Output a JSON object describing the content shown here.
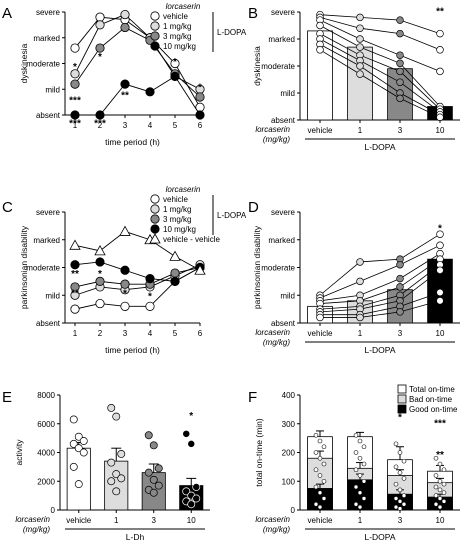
{
  "chart_data": [
    {
      "panel": "A",
      "type": "line",
      "ylabel": "dyskinesia",
      "xlabel": "time period (h)",
      "x": [
        1,
        2,
        3,
        4,
        5,
        6
      ],
      "ytick_labels": [
        "absent",
        "mild",
        "moderate",
        "marked",
        "severe"
      ],
      "ylim": [
        0,
        4
      ],
      "legend_title": "lorcaserin",
      "legend_bracket": "L-DOPA",
      "series": [
        {
          "name": "vehicle",
          "fill": "#ffffff",
          "values": [
            2.6,
            3.8,
            3.7,
            3.0,
            2.0,
            0.3
          ]
        },
        {
          "name": "1 mg/kg",
          "fill": "#dddddd",
          "values": [
            1.6,
            3.5,
            3.9,
            3.0,
            1.5,
            1.0
          ]
        },
        {
          "name": "3 mg/kg",
          "fill": "#888888",
          "values": [
            1.2,
            2.6,
            3.4,
            2.9,
            1.6,
            0.7
          ]
        },
        {
          "name": "10 mg/kg",
          "fill": "#000000",
          "values": [
            0.0,
            0.0,
            1.2,
            0.9,
            1.5,
            0.0
          ]
        }
      ],
      "annotations": [
        {
          "x": 1,
          "y": 1.9,
          "text": "*"
        },
        {
          "x": 1,
          "y": 0.6,
          "text": "***"
        },
        {
          "x": 1,
          "y": -0.3,
          "text": "***"
        },
        {
          "x": 2,
          "y": 2.3,
          "text": "*"
        },
        {
          "x": 2,
          "y": -0.3,
          "text": "***"
        },
        {
          "x": 3,
          "y": 0.8,
          "text": "**"
        },
        {
          "x": 5,
          "y": 2.1,
          "text": "*"
        },
        {
          "x": 6,
          "y": 1.1,
          "text": "*"
        }
      ]
    },
    {
      "panel": "B",
      "type": "bar",
      "ylabel": "dyskinesia",
      "ytick_labels": [
        "absent",
        "mild",
        "moderate",
        "marked",
        "severe"
      ],
      "ylim": [
        0,
        4
      ],
      "categories": [
        "vehicle",
        "1",
        "3",
        "10"
      ],
      "category_title": "lorcaserin\n(mg/kg)",
      "group_label": "L-DOPA",
      "values": [
        3.3,
        2.7,
        1.9,
        0.5
      ],
      "fills": [
        "#ffffff",
        "#dddddd",
        "#888888",
        "#000000"
      ],
      "individual": [
        [
          3.9,
          3.8,
          3.7,
          3.5,
          3.2,
          3.0,
          2.8,
          2.6
        ],
        [
          3.8,
          3.4,
          3.0,
          2.7,
          2.4,
          2.2,
          2.0,
          1.7
        ],
        [
          3.7,
          3.2,
          2.4,
          2.1,
          1.8,
          1.4,
          1.0,
          0.8
        ],
        [
          3.2,
          2.6,
          1.8,
          0.5,
          0.4,
          0.3,
          0.2,
          0.1
        ]
      ],
      "annotations": [
        {
          "cat": 3,
          "y": 4.05,
          "text": "**"
        }
      ]
    },
    {
      "panel": "C",
      "type": "line",
      "ylabel": "parkinsonian disability",
      "xlabel": "time period (h)",
      "x": [
        1,
        2,
        3,
        4,
        5,
        6
      ],
      "ytick_labels": [
        "absent",
        "mild",
        "moderate",
        "marked",
        "severe"
      ],
      "ylim": [
        0,
        4
      ],
      "legend_title": "lorcaserin",
      "legend_bracket": "L-DOPA",
      "series": [
        {
          "name": "vehicle",
          "fill": "#ffffff",
          "marker": "circle",
          "values": [
            0.5,
            0.7,
            0.6,
            0.6,
            1.5,
            2.0
          ]
        },
        {
          "name": "1 mg/kg",
          "fill": "#dddddd",
          "marker": "circle",
          "values": [
            1.0,
            1.3,
            1.2,
            1.3,
            1.7,
            2.1
          ]
        },
        {
          "name": "3 mg/kg",
          "fill": "#888888",
          "marker": "circle",
          "values": [
            1.3,
            1.5,
            1.4,
            1.4,
            1.8,
            2.0
          ]
        },
        {
          "name": "10 mg/kg",
          "fill": "#000000",
          "marker": "circle",
          "values": [
            2.1,
            2.2,
            1.9,
            1.6,
            1.5,
            2.0
          ]
        },
        {
          "name": "vehicle - vehicle",
          "fill": "#ffffff",
          "marker": "triangle",
          "values": [
            2.8,
            2.6,
            3.3,
            3.0,
            2.4,
            1.9
          ]
        }
      ],
      "annotations": [
        {
          "x": 1,
          "y": 1.8,
          "text": "**"
        },
        {
          "x": 1,
          "y": 1.1,
          "text": "**"
        },
        {
          "x": 2,
          "y": 1.8,
          "text": "*"
        },
        {
          "x": 3,
          "y": 1.9,
          "text": "**"
        },
        {
          "x": 3,
          "y": 1.1,
          "text": "*"
        },
        {
          "x": 4,
          "y": 1.6,
          "text": "**"
        },
        {
          "x": 4,
          "y": 1.0,
          "text": "*"
        }
      ]
    },
    {
      "panel": "D",
      "type": "bar",
      "ylabel": "parkinsonian disability",
      "ytick_labels": [
        "absent",
        "mild",
        "moderate",
        "marked",
        "severe"
      ],
      "ylim": [
        0,
        4
      ],
      "categories": [
        "vehicle",
        "1",
        "3",
        "10"
      ],
      "category_title": "lorcaserin\n(mg/kg)",
      "group_label": "L-DOPA",
      "values": [
        0.6,
        0.8,
        1.2,
        2.3
      ],
      "fills": [
        "#ffffff",
        "#dddddd",
        "#888888",
        "#000000"
      ],
      "individual": [
        [
          1.0,
          0.9,
          0.8,
          0.7,
          0.5,
          0.4,
          0.3,
          0.2
        ],
        [
          2.2,
          1.5,
          1.0,
          0.8,
          0.6,
          0.5,
          0.3,
          0.2
        ],
        [
          2.3,
          2.1,
          1.6,
          1.3,
          1.0,
          0.8,
          0.6,
          0.4
        ],
        [
          3.2,
          2.8,
          2.5,
          2.3,
          2.1,
          1.9,
          1.1,
          0.8
        ]
      ],
      "annotations": [
        {
          "cat": 3,
          "y": 3.45,
          "text": "*"
        }
      ]
    },
    {
      "panel": "E",
      "type": "bar",
      "ylabel": "activity",
      "ylim": [
        0,
        8000
      ],
      "yticks": [
        0,
        2000,
        4000,
        6000,
        8000
      ],
      "categories": [
        "vehicle",
        "1",
        "3",
        "10"
      ],
      "category_title": "lorcaserin\n(mg/kg)",
      "group_label": "L-Dh",
      "values": [
        4300,
        3400,
        2600,
        1700
      ],
      "errors": [
        400,
        900,
        600,
        500
      ],
      "fills": [
        "#ffffff",
        "#dddddd",
        "#888888",
        "#000000"
      ],
      "individual": [
        [
          6300,
          5100,
          4800,
          4600,
          4300,
          4000,
          3000,
          1800
        ],
        [
          7100,
          6500,
          3900,
          3300,
          2500,
          2200,
          2000,
          1300
        ],
        [
          5200,
          4500,
          2900,
          2600,
          2100,
          1700,
          1400,
          1200
        ],
        [
          5300,
          4600,
          1600,
          1300,
          1000,
          800,
          600,
          400
        ]
      ],
      "annotations": [
        {
          "cat": 3,
          "y": 6600,
          "text": "*"
        }
      ]
    },
    {
      "panel": "F",
      "type": "bar",
      "ylabel": "total on-time (min)",
      "ylim": [
        0,
        400
      ],
      "yticks": [
        0,
        100,
        200,
        300,
        400
      ],
      "categories": [
        "vehicle",
        "1",
        "3",
        "10"
      ],
      "category_title": "lorcaserin\n(mg/kg)",
      "group_label": "L-DOPA",
      "series": [
        {
          "name": "Total on-time",
          "fill": "#ffffff",
          "values": [
            255,
            255,
            175,
            135
          ],
          "errors": [
            20,
            15,
            45,
            20
          ]
        },
        {
          "name": "Bad on-time",
          "fill": "#dddddd",
          "values": [
            180,
            145,
            120,
            95
          ],
          "errors": [
            25,
            20,
            20,
            15
          ]
        },
        {
          "name": "Good on-time",
          "fill": "#000000",
          "values": [
            75,
            105,
            55,
            45
          ],
          "errors": [
            15,
            20,
            15,
            10
          ]
        }
      ],
      "individual": [
        [
          260,
          240,
          220,
          200,
          180,
          160,
          140,
          120,
          100,
          80,
          60,
          40,
          20,
          10
        ],
        [
          260,
          240,
          220,
          200,
          180,
          160,
          140,
          120,
          100,
          80,
          60,
          40,
          20,
          10
        ],
        [
          230,
          200,
          170,
          150,
          130,
          110,
          90,
          70,
          50,
          40,
          30,
          20,
          10,
          5
        ],
        [
          180,
          160,
          140,
          120,
          100,
          90,
          80,
          70,
          60,
          50,
          40,
          30,
          20,
          10
        ]
      ],
      "annotations": [
        {
          "cat": 2,
          "y": 325,
          "text": "*"
        },
        {
          "cat": 3,
          "y": 305,
          "text": "***"
        },
        {
          "cat": 3,
          "y": 195,
          "text": "**"
        }
      ]
    }
  ]
}
